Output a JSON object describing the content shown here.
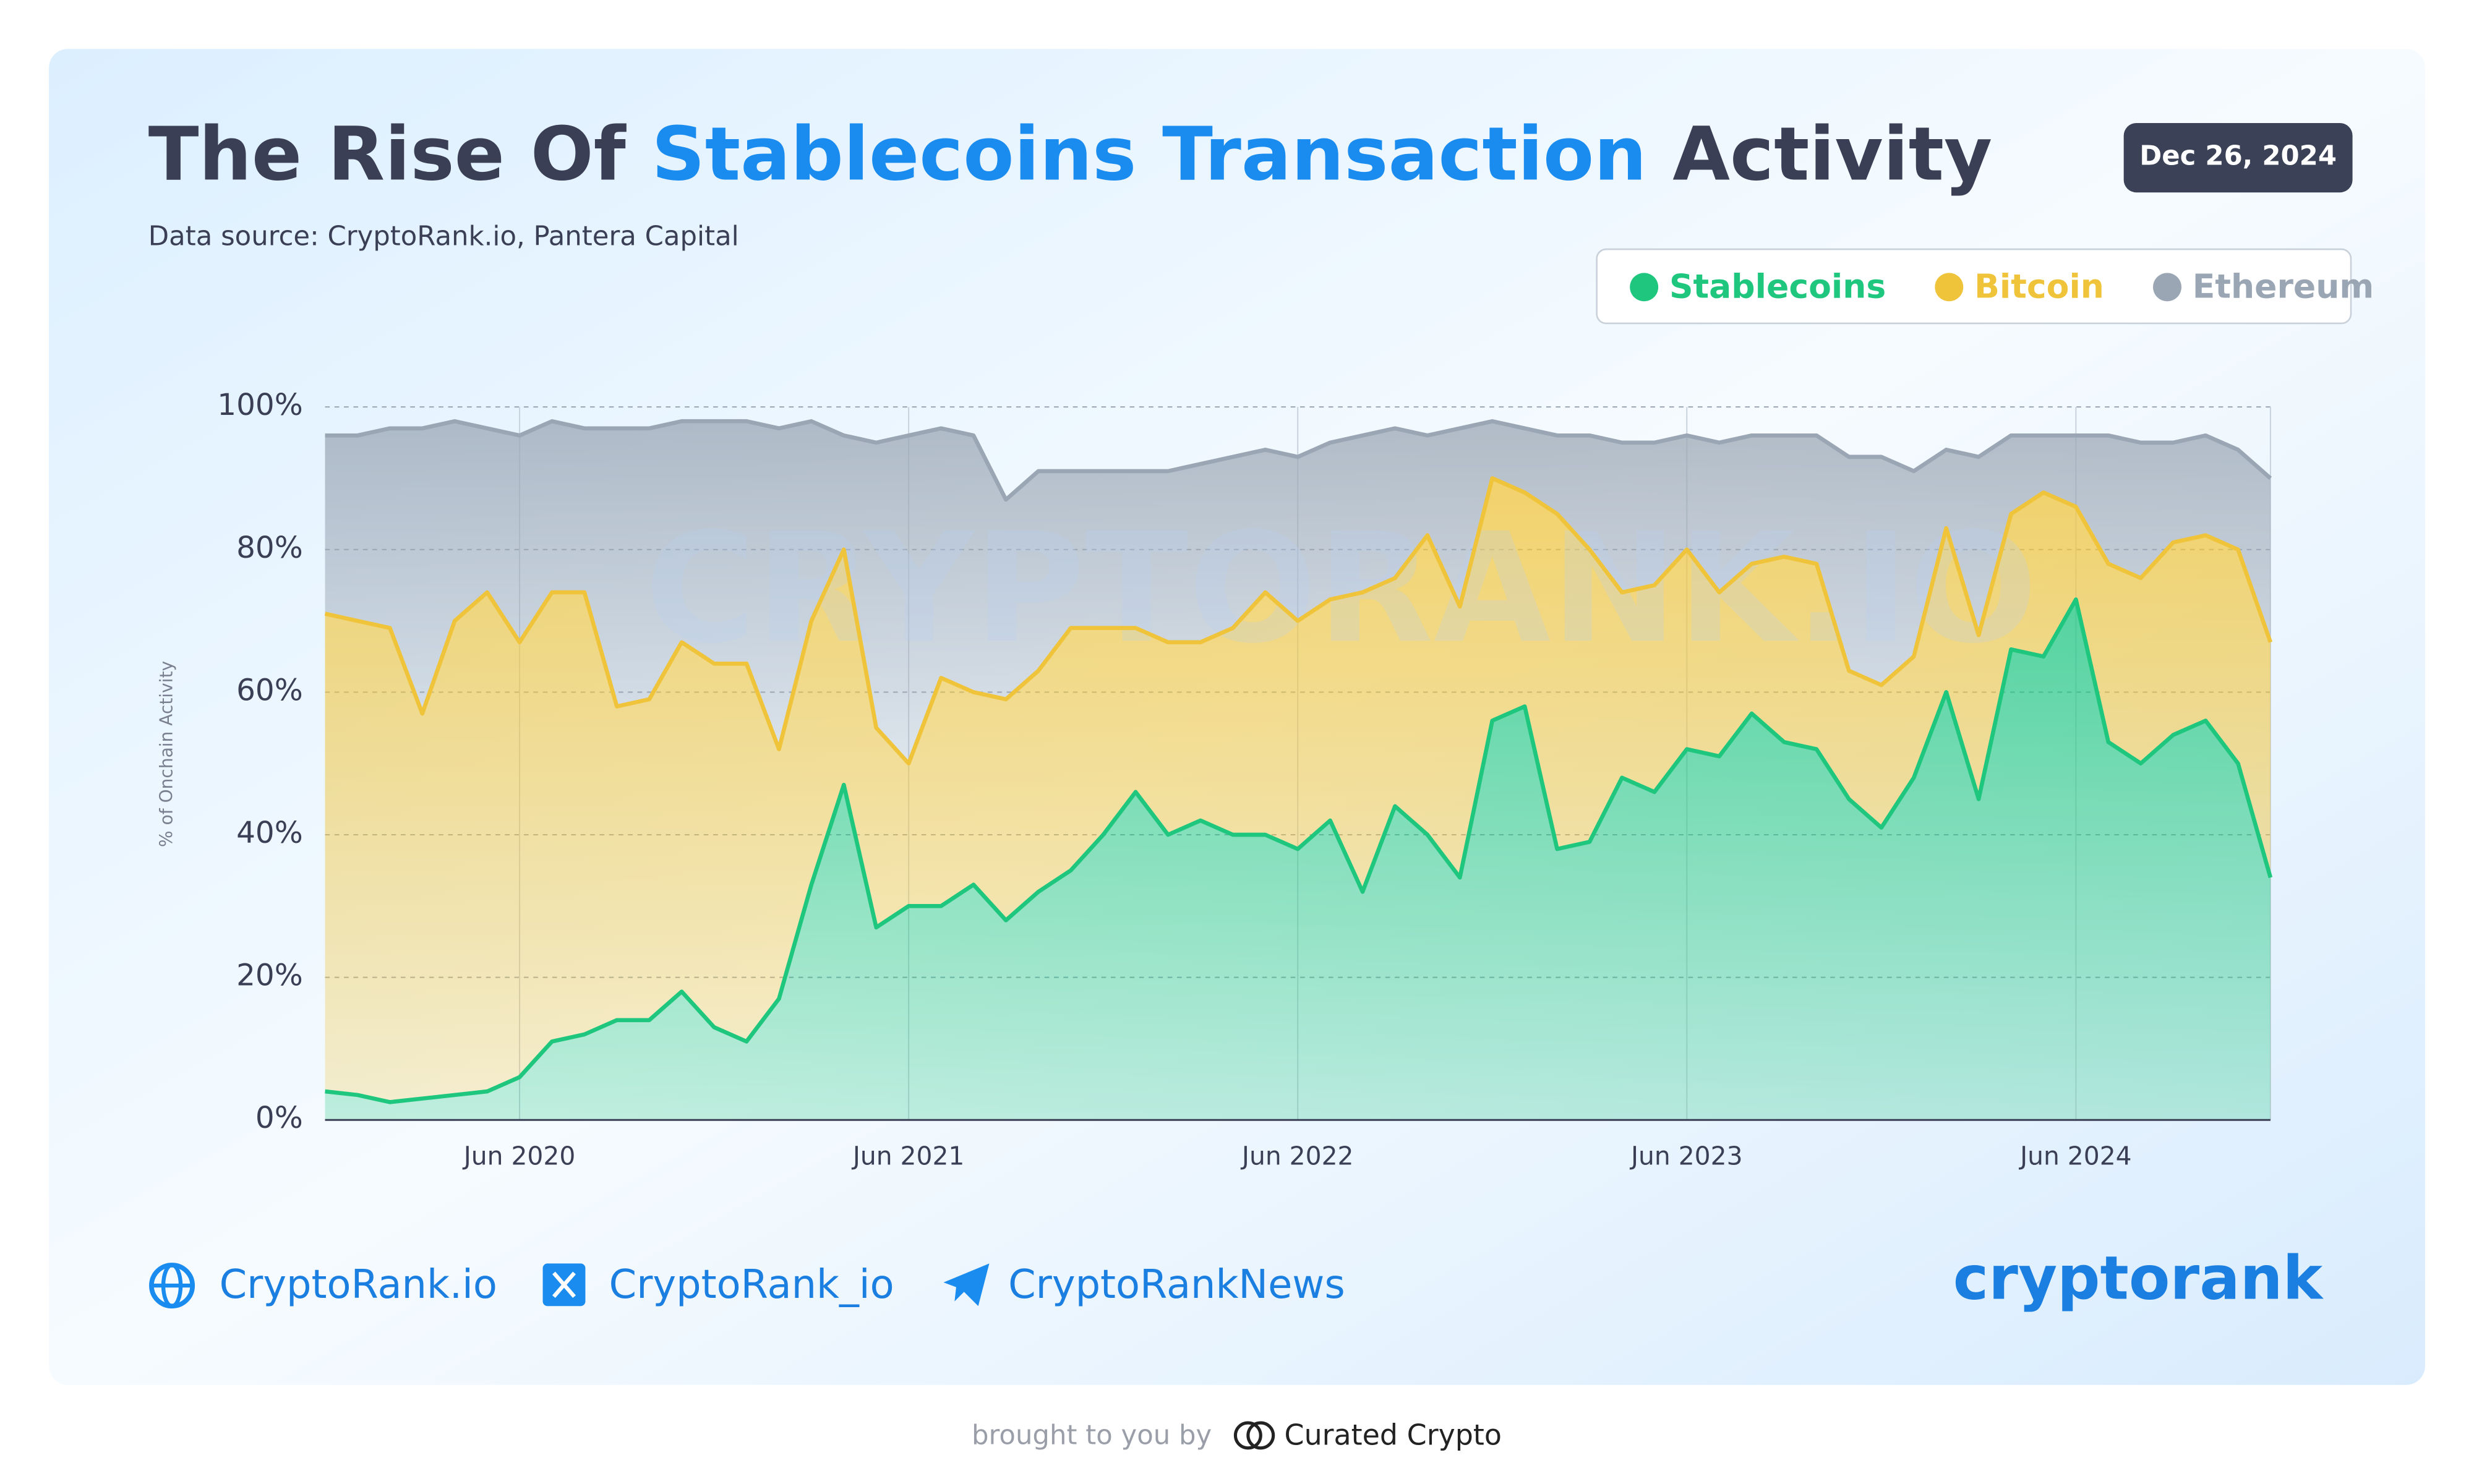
{
  "header": {
    "title": [
      "The Rise Of",
      "Stablecoins Transaction",
      "Activity"
    ],
    "subtitle": "Data source: CryptoRank.io, Pantera Capital",
    "date": "Dec 26, 2024"
  },
  "footer": {
    "links": [
      "CryptoRank.io",
      "CryptoRank_io",
      "CryptoRankNews"
    ],
    "logo": "cryptorank",
    "credit": "brought to you by",
    "sponsor": "Curated Crypto",
    "watermark": "CRYPTORANK.IO"
  },
  "chart_data": {
    "type": "area",
    "stacked": true,
    "ylabel": "% of Onchain Activity",
    "grid": true,
    "legend": "top-right",
    "x": [
      "2019-12",
      "2020-01",
      "2020-02",
      "2020-03",
      "2020-04",
      "2020-05",
      "2020-06",
      "2020-07",
      "2020-08",
      "2020-09",
      "2020-10",
      "2020-11",
      "2020-12",
      "2021-01",
      "2021-02",
      "2021-03",
      "2021-04",
      "2021-05",
      "2021-06",
      "2021-07",
      "2021-08",
      "2021-09",
      "2021-10",
      "2021-11",
      "2021-12",
      "2022-01",
      "2022-02",
      "2022-03",
      "2022-04",
      "2022-05",
      "2022-06",
      "2022-07",
      "2022-08",
      "2022-09",
      "2022-10",
      "2022-11",
      "2022-12",
      "2023-01",
      "2023-02",
      "2023-03",
      "2023-04",
      "2023-05",
      "2023-06",
      "2023-07",
      "2023-08",
      "2023-09",
      "2023-10",
      "2023-11",
      "2023-12",
      "2024-01",
      "2024-02",
      "2024-03",
      "2024-04",
      "2024-05",
      "2024-06",
      "2024-07",
      "2024-08",
      "2024-09",
      "2024-10",
      "2024-11",
      "2024-12"
    ],
    "xlim": [
      "2019-12",
      "2024-12"
    ],
    "xticks": [
      {
        "value": "2020-06",
        "label": "Jun 2020"
      },
      {
        "value": "2021-06",
        "label": "Jun 2021"
      },
      {
        "value": "2022-06",
        "label": "Jun 2022"
      },
      {
        "value": "2023-06",
        "label": "Jun 2023"
      },
      {
        "value": "2024-06",
        "label": "Jun 2024"
      }
    ],
    "ylim": [
      0,
      100
    ],
    "yticks": [
      {
        "value": 0,
        "label": "0%"
      },
      {
        "value": 20,
        "label": "20%"
      },
      {
        "value": 40,
        "label": "40%"
      },
      {
        "value": 60,
        "label": "60%"
      },
      {
        "value": 80,
        "label": "80%"
      },
      {
        "value": 100,
        "label": "100%"
      }
    ],
    "series": [
      {
        "name": "Stablecoins",
        "color": "#1fc77e",
        "values": [
          4,
          3.5,
          2.5,
          3,
          3.5,
          4,
          6,
          11,
          12,
          14,
          14,
          18,
          13,
          11,
          17,
          33,
          47,
          27,
          30,
          30,
          33,
          28,
          32,
          35,
          40,
          46,
          40,
          42,
          40,
          40,
          38,
          42,
          32,
          44,
          40,
          34,
          56,
          58,
          38,
          39,
          48,
          46,
          52,
          51,
          57,
          53,
          52,
          45,
          41,
          48,
          60,
          45,
          66,
          65,
          73,
          53,
          50,
          54,
          56,
          50,
          34
        ]
      },
      {
        "name": "Bitcoin",
        "color": "#f0c43a",
        "values": [
          67,
          66.5,
          66.5,
          54,
          66.5,
          70,
          61,
          63,
          62,
          44,
          45,
          49,
          51,
          53,
          35,
          37,
          33,
          28,
          20,
          32,
          27,
          31,
          31,
          34,
          29,
          23,
          27,
          25,
          29,
          34,
          32,
          31,
          42,
          32,
          42,
          38,
          34,
          30,
          47,
          41,
          26,
          29,
          28,
          23,
          21,
          26,
          26,
          18,
          20,
          17,
          23,
          23,
          19,
          23,
          13,
          25,
          26,
          27,
          26,
          30,
          33
        ]
      },
      {
        "name": "Ethereum",
        "color": "#9aa6b4",
        "values": [
          25,
          26,
          28,
          40,
          28,
          23,
          29,
          24,
          23,
          39,
          38,
          31,
          34,
          34,
          45,
          28,
          16,
          40,
          46,
          35,
          36,
          28,
          28,
          22,
          22,
          22,
          24,
          25,
          24,
          20,
          23,
          22,
          22,
          21,
          14,
          25,
          8,
          9,
          11,
          16,
          21,
          20,
          16,
          21,
          18,
          17,
          18,
          30,
          32,
          26,
          11,
          25,
          11,
          8,
          10,
          18,
          19,
          14,
          14,
          14,
          23
        ]
      }
    ]
  }
}
